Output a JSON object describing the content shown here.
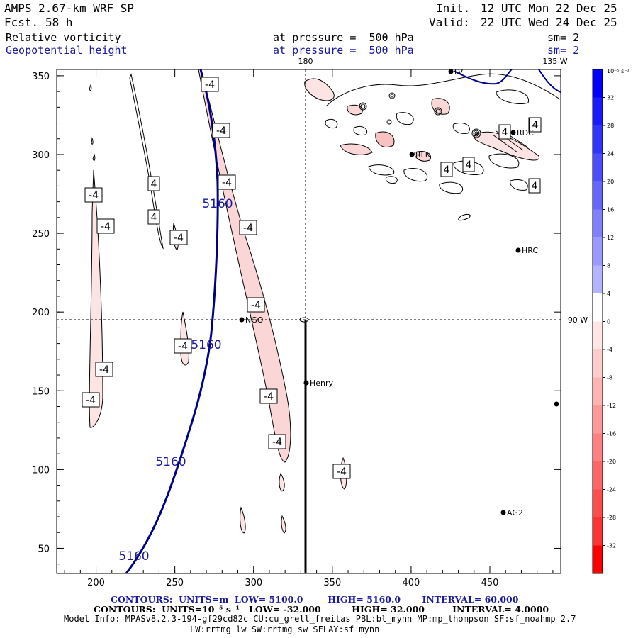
{
  "header": {
    "model": "AMPS 2.67-km WRF SP",
    "fcst_label": "Fcst.",
    "fcst_value": "58 h",
    "init_label": "Init.",
    "init_value": "12 UTC Mon 22 Dec 25",
    "valid_label": "Valid:",
    "valid_value": "22 UTC Wed 24 Dec 25",
    "field1": "Relative vorticity",
    "field2": "Geopotential height",
    "pressure1": "at pressure =  500 hPa",
    "pressure2": "at pressure =  500 hPa",
    "sm1": "sm= 2",
    "sm2": "sm= 2"
  },
  "map": {
    "x_ticks": [
      "200",
      "250",
      "300",
      "350",
      "400",
      "450"
    ],
    "y_ticks": [
      "350",
      "300",
      "250",
      "200",
      "150",
      "100",
      "50"
    ],
    "lon_top_180": "180",
    "lon_top_135w": "135 W",
    "lon_right_90w": "90 W",
    "height_labels": [
      "5160",
      "5160",
      "5160",
      "5160"
    ],
    "neg_labels": [
      "-4",
      "-4",
      "-4",
      "-4",
      "-4",
      "-4",
      "-4",
      "-4",
      "-4",
      "-4",
      "-4",
      "-4",
      "-4",
      "-4"
    ],
    "pos_labels": [
      "4",
      "4",
      "4",
      "4",
      "4",
      "4",
      "4",
      "4"
    ],
    "stations": [
      "NGO",
      "Henry",
      "HRC",
      "AG2",
      "RDC",
      "RLN",
      "LV"
    ]
  },
  "colorbar": {
    "unit": "10⁻⁵ s⁻¹",
    "ticks": [
      "32",
      "28",
      "24",
      "20",
      "16",
      "12",
      "8",
      "4",
      "0",
      "-4",
      "-8",
      "-12",
      "-16",
      "-20",
      "-24",
      "-28",
      "-32"
    ],
    "colors": [
      "#0000ff",
      "#1a1aff",
      "#3333ff",
      "#4d4dff",
      "#6666ff",
      "#8080ff",
      "#9999ff",
      "#b3b3ff",
      "#ffffff",
      "#ffe6e6",
      "#ffcccc",
      "#ffb3b3",
      "#ff9999",
      "#ff8080",
      "#ff6666",
      "#ff4d4d",
      "#ff3333",
      "#ff0000"
    ]
  },
  "footer": {
    "c1_label": "CONTOURS:  UNITS=m  LOW=",
    "c1_low": "5100.0",
    "c1_high_label": "HIGH=",
    "c1_high": "5160.0",
    "c1_int_label": "INTERVAL=",
    "c1_int": "60.000",
    "c2_label": "CONTOURS:  UNITS=10⁻⁵ s⁻¹   LOW=",
    "c2_low": "-32.000",
    "c2_high_label": "HIGH=",
    "c2_high": "32.000",
    "c2_int_label": "INTERVAL=",
    "c2_int": "4.0000",
    "model_info": "Model Info: MPASv8.2.3-194-gf29cd82c CU:cu_grell_freitas PBL:bl_mynn MP:mp_thompson SF:sf_noahmp 2.7",
    "model_info2": "LW:rrtmg_lw SW:rrtmg_sw SFLAY:sf_mynn"
  }
}
